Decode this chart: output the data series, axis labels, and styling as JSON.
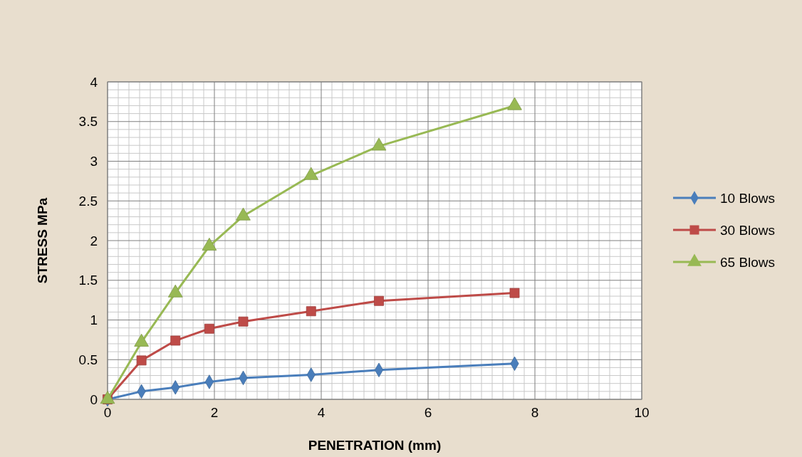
{
  "chart_data": {
    "type": "line",
    "xlabel": "PENETRATION (mm)",
    "ylabel": "STRESS MPa",
    "xlim": [
      0,
      10
    ],
    "xticks": [
      0,
      2,
      4,
      6,
      8,
      10
    ],
    "ylim": [
      0,
      4
    ],
    "yticks": [
      0,
      0.5,
      1,
      1.5,
      2,
      2.5,
      3,
      3.5,
      4
    ],
    "grid": true,
    "legend": "right",
    "x": [
      0,
      0.635,
      1.27,
      1.905,
      2.54,
      3.81,
      5.08,
      7.62
    ],
    "series": [
      {
        "name": "10 Blows",
        "color": "#4a7ebb",
        "marker": "diamond",
        "values": [
          0,
          0.1,
          0.15,
          0.22,
          0.27,
          0.31,
          0.37,
          0.45
        ]
      },
      {
        "name": "30 Blows",
        "color": "#be4b48",
        "marker": "square",
        "values": [
          0,
          0.49,
          0.74,
          0.89,
          0.98,
          1.11,
          1.24,
          1.34
        ]
      },
      {
        "name": "65 Blows",
        "color": "#98b954",
        "marker": "triangle",
        "values": [
          0,
          0.72,
          1.34,
          1.93,
          2.31,
          2.82,
          3.19,
          3.7
        ]
      }
    ]
  }
}
